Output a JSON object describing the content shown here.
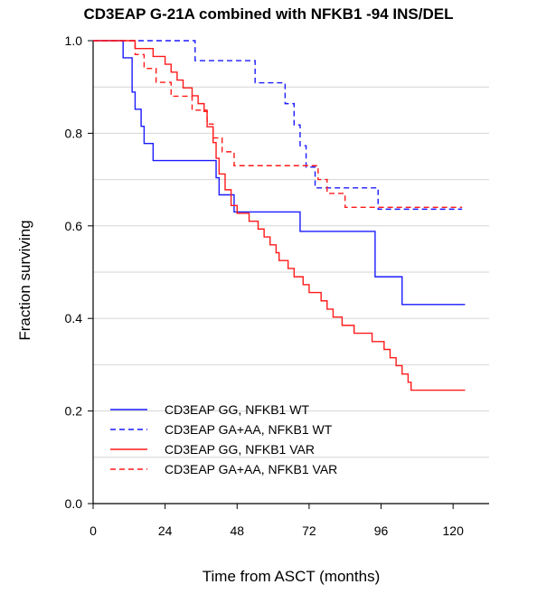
{
  "chart_data": {
    "type": "line",
    "title": "CD3EAP G-21A combined with NFKB1 -94 INS/DEL",
    "xlabel": "Time from ASCT (months)",
    "ylabel": "Fraction surviving",
    "xlim": [
      0,
      132
    ],
    "ylim": [
      0,
      1.0
    ],
    "xticks": [
      0,
      24,
      48,
      72,
      96,
      120
    ],
    "yticks": [
      0.0,
      0.2,
      0.4,
      0.6,
      0.8,
      1.0
    ],
    "xtick_labels": [
      "0",
      "24",
      "48",
      "72",
      "96",
      "120"
    ],
    "ytick_labels": [
      "0.0",
      "0.2",
      "0.4",
      "0.6",
      "0.8",
      "1.0"
    ],
    "grid": "horizontal",
    "legend_position": "bottom-left",
    "series": [
      {
        "name": "CD3EAP GG, NFKB1 WT",
        "color": "#1a1aff",
        "style": "solid",
        "x": [
          0,
          10,
          13,
          14,
          16,
          17,
          20,
          41,
          42,
          47,
          52,
          69,
          94,
          95,
          103,
          124
        ],
        "y": [
          1.0,
          0.963,
          0.889,
          0.852,
          0.815,
          0.778,
          0.741,
          0.704,
          0.667,
          0.63,
          0.63,
          0.588,
          0.49,
          0.49,
          0.43,
          0.43
        ]
      },
      {
        "name": "CD3EAP GA+AA, NFKB1 WT",
        "color": "#1a1aff",
        "style": "dashed",
        "x": [
          0,
          34,
          54,
          64,
          67,
          69,
          71,
          74,
          95,
          123
        ],
        "y": [
          1.0,
          0.957,
          0.909,
          0.864,
          0.818,
          0.773,
          0.727,
          0.682,
          0.636,
          0.636
        ]
      },
      {
        "name": "CD3EAP GG, NFKB1 VAR",
        "color": "#ff1a1a",
        "style": "solid",
        "x": [
          0,
          14,
          20,
          24,
          26,
          28,
          30,
          33,
          35,
          37,
          38,
          40,
          41,
          42,
          44,
          46,
          48,
          52,
          55,
          57,
          59,
          61,
          62,
          65,
          67,
          70,
          72,
          76,
          78,
          80,
          83,
          87,
          93,
          97,
          99,
          101,
          103,
          105,
          106,
          124
        ],
        "y": [
          1.0,
          0.983,
          0.966,
          0.949,
          0.932,
          0.915,
          0.898,
          0.881,
          0.864,
          0.847,
          0.814,
          0.78,
          0.746,
          0.712,
          0.678,
          0.644,
          0.627,
          0.61,
          0.593,
          0.576,
          0.559,
          0.542,
          0.525,
          0.508,
          0.49,
          0.473,
          0.456,
          0.438,
          0.42,
          0.403,
          0.385,
          0.368,
          0.35,
          0.333,
          0.315,
          0.298,
          0.28,
          0.262,
          0.245,
          0.245
        ]
      },
      {
        "name": "CD3EAP GA+AA, NFKB1 VAR",
        "color": "#ff1a1a",
        "style": "dashed",
        "x": [
          0,
          14,
          17,
          21,
          26,
          33,
          38,
          40,
          43,
          47,
          75,
          78,
          84,
          123
        ],
        "y": [
          1.0,
          0.97,
          0.94,
          0.91,
          0.88,
          0.85,
          0.82,
          0.79,
          0.76,
          0.73,
          0.7,
          0.67,
          0.64,
          0.64
        ]
      }
    ]
  }
}
